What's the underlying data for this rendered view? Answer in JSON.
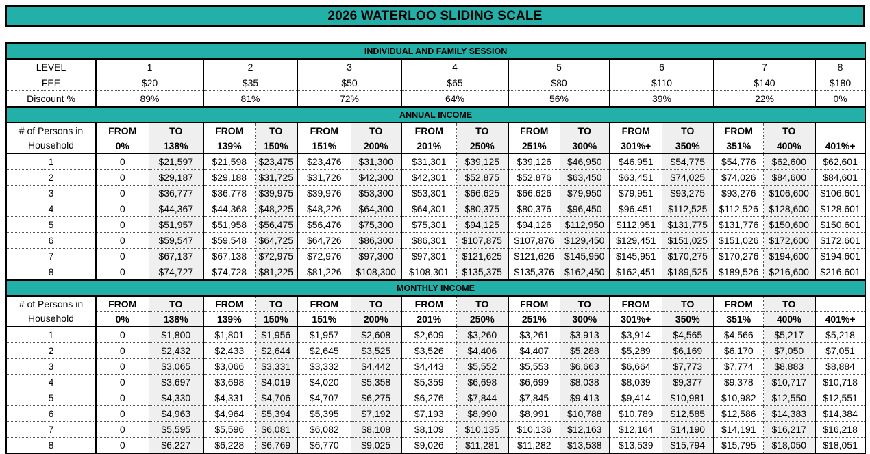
{
  "title": "2026 WATERLOO SLIDING SCALE",
  "colors": {
    "teal": "#23b0a8",
    "shade": "#efefef",
    "border": "#000000"
  },
  "labels": {
    "from": "FROM",
    "to": "TO"
  },
  "session": {
    "header": "INDIVIDUAL AND FAMILY SESSION",
    "level_label": "LEVEL",
    "fee_label": "FEE",
    "discount_label": "Discount %",
    "levels": [
      "1",
      "2",
      "3",
      "4",
      "5",
      "6",
      "7",
      "8"
    ],
    "fees": [
      "$20",
      "$35",
      "$50",
      "$65",
      "$80",
      "$110",
      "$140",
      "$180"
    ],
    "discounts": [
      "89%",
      "81%",
      "72%",
      "64%",
      "56%",
      "39%",
      "22%",
      "0%"
    ]
  },
  "annual": {
    "header": "ANNUAL INCOME",
    "household_label_1": "# of Persons in",
    "household_label_2": "Household",
    "pcts": [
      "0%",
      "138%",
      "139%",
      "150%",
      "151%",
      "200%",
      "201%",
      "250%",
      "251%",
      "300%",
      "301%+",
      "350%",
      "351%",
      "400%"
    ],
    "last_pct": "401%+",
    "rows": [
      [
        "1",
        "0",
        "$21,597",
        "$21,598",
        "$23,475",
        "$23,476",
        "$31,300",
        "$31,301",
        "$39,125",
        "$39,126",
        "$46,950",
        "$46,951",
        "$54,775",
        "$54,776",
        "$62,600",
        "$62,601"
      ],
      [
        "2",
        "0",
        "$29,187",
        "$29,188",
        "$31,725",
        "$31,726",
        "$42,300",
        "$42,301",
        "$52,875",
        "$52,876",
        "$63,450",
        "$63,451",
        "$74,025",
        "$74,026",
        "$84,600",
        "$84,601"
      ],
      [
        "3",
        "0",
        "$36,777",
        "$36,778",
        "$39,975",
        "$39,976",
        "$53,300",
        "$53,301",
        "$66,625",
        "$66,626",
        "$79,950",
        "$79,951",
        "$93,275",
        "$93,276",
        "$106,600",
        "$106,601"
      ],
      [
        "4",
        "0",
        "$44,367",
        "$44,368",
        "$48,225",
        "$48,226",
        "$64,300",
        "$64,301",
        "$80,375",
        "$80,376",
        "$96,450",
        "$96,451",
        "$112,525",
        "$112,526",
        "$128,600",
        "$128,601"
      ],
      [
        "5",
        "0",
        "$51,957",
        "$51,958",
        "$56,475",
        "$56,476",
        "$75,300",
        "$75,301",
        "$94,125",
        "$94,126",
        "$112,950",
        "$112,951",
        "$131,775",
        "$131,776",
        "$150,600",
        "$150,601"
      ],
      [
        "6",
        "0",
        "$59,547",
        "$59,548",
        "$64,725",
        "$64,726",
        "$86,300",
        "$86,301",
        "$107,875",
        "$107,876",
        "$129,450",
        "$129,451",
        "$151,025",
        "$151,026",
        "$172,600",
        "$172,601"
      ],
      [
        "7",
        "0",
        "$67,137",
        "$67,138",
        "$72,975",
        "$72,976",
        "$97,300",
        "$97,301",
        "$121,625",
        "$121,626",
        "$145,950",
        "$145,951",
        "$170,275",
        "$170,276",
        "$194,600",
        "$194,601"
      ],
      [
        "8",
        "0",
        "$74,727",
        "$74,728",
        "$81,225",
        "$81,226",
        "$108,300",
        "$108,301",
        "$135,375",
        "$135,376",
        "$162,450",
        "$162,451",
        "$189,525",
        "$189,526",
        "$216,600",
        "$216,601"
      ]
    ]
  },
  "monthly": {
    "header": "MONTHLY INCOME",
    "household_label_1": "# of Persons in",
    "household_label_2": "Household",
    "pcts": [
      "0%",
      "138%",
      "139%",
      "150%",
      "151%",
      "200%",
      "201%",
      "250%",
      "251%",
      "300%",
      "301%+",
      "350%",
      "351%",
      "400%"
    ],
    "last_pct": "401%+",
    "rows": [
      [
        "1",
        "0",
        "$1,800",
        "$1,801",
        "$1,956",
        "$1,957",
        "$2,608",
        "$2,609",
        "$3,260",
        "$3,261",
        "$3,913",
        "$3,914",
        "$4,565",
        "$4,566",
        "$5,217",
        "$5,218"
      ],
      [
        "2",
        "0",
        "$2,432",
        "$2,433",
        "$2,644",
        "$2,645",
        "$3,525",
        "$3,526",
        "$4,406",
        "$4,407",
        "$5,288",
        "$5,289",
        "$6,169",
        "$6,170",
        "$7,050",
        "$7,051"
      ],
      [
        "3",
        "0",
        "$3,065",
        "$3,066",
        "$3,331",
        "$3,332",
        "$4,442",
        "$4,443",
        "$5,552",
        "$5,553",
        "$6,663",
        "$6,664",
        "$7,773",
        "$7,774",
        "$8,883",
        "$8,884"
      ],
      [
        "4",
        "0",
        "$3,697",
        "$3,698",
        "$4,019",
        "$4,020",
        "$5,358",
        "$5,359",
        "$6,698",
        "$6,699",
        "$8,038",
        "$8,039",
        "$9,377",
        "$9,378",
        "$10,717",
        "$10,718"
      ],
      [
        "5",
        "0",
        "$4,330",
        "$4,331",
        "$4,706",
        "$4,707",
        "$6,275",
        "$6,276",
        "$7,844",
        "$7,845",
        "$9,413",
        "$9,414",
        "$10,981",
        "$10,982",
        "$12,550",
        "$12,551"
      ],
      [
        "6",
        "0",
        "$4,963",
        "$4,964",
        "$5,394",
        "$5,395",
        "$7,192",
        "$7,193",
        "$8,990",
        "$8,991",
        "$10,788",
        "$10,789",
        "$12,585",
        "$12,586",
        "$14,383",
        "$14,384"
      ],
      [
        "7",
        "0",
        "$5,595",
        "$5,596",
        "$6,081",
        "$6,082",
        "$8,108",
        "$8,109",
        "$10,135",
        "$10,136",
        "$12,163",
        "$12,164",
        "$14,190",
        "$14,191",
        "$16,217",
        "$16,218"
      ],
      [
        "8",
        "0",
        "$6,227",
        "$6,228",
        "$6,769",
        "$6,770",
        "$9,025",
        "$9,026",
        "$11,281",
        "$11,282",
        "$13,538",
        "$13,539",
        "$15,794",
        "$15,795",
        "$18,050",
        "$18,051"
      ]
    ]
  }
}
